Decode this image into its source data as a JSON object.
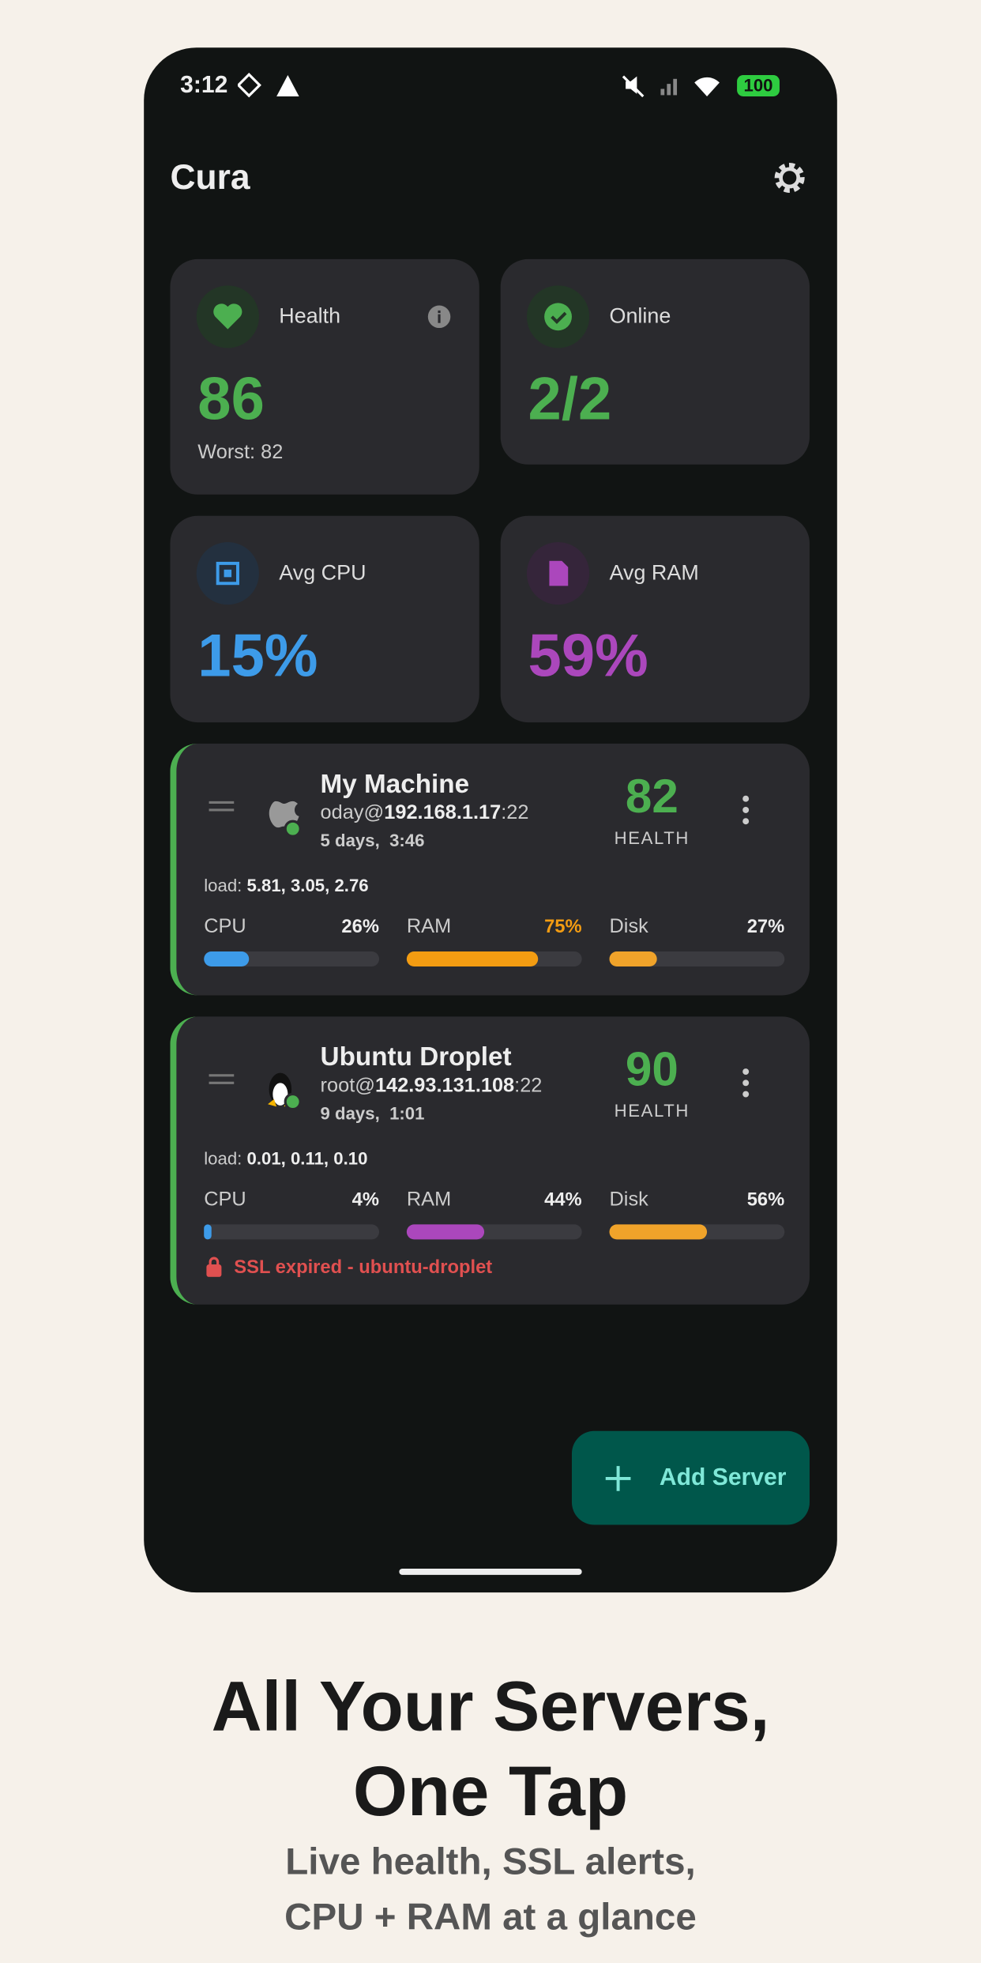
{
  "status": {
    "time": "3:12",
    "battery": "100"
  },
  "header": {
    "title": "Cura"
  },
  "summary": {
    "health": {
      "label": "Health",
      "value": "86",
      "note": "Worst: 82"
    },
    "online": {
      "label": "Online",
      "value": "2/2"
    },
    "cpu": {
      "label": "Avg CPU",
      "value": "15%"
    },
    "ram": {
      "label": "Avg RAM",
      "value": "59%"
    }
  },
  "servers": [
    {
      "name": "My Machine",
      "user": "oday@",
      "host": "192.168.1.17",
      "port": ":22",
      "uptime": "5 days,  3:46",
      "health": "82",
      "health_label": "HEALTH",
      "load_label": "load:",
      "load": "5.81, 3.05, 2.76",
      "metrics": [
        {
          "name": "CPU",
          "value": "26%",
          "color": "#3d9be9"
        },
        {
          "name": "RAM",
          "value": "75%",
          "color": "#f39c12"
        },
        {
          "name": "Disk",
          "value": "27%",
          "color": "#f0a32a"
        }
      ]
    },
    {
      "name": "Ubuntu Droplet",
      "user": "root@",
      "host": "142.93.131.108",
      "port": ":22",
      "uptime": "9 days,  1:01",
      "health": "90",
      "health_label": "HEALTH",
      "load_label": "load:",
      "load": "0.01, 0.11, 0.10",
      "metrics": [
        {
          "name": "CPU",
          "value": "4%",
          "color": "#3d9be9"
        },
        {
          "name": "RAM",
          "value": "44%",
          "color": "#ab47bc"
        },
        {
          "name": "Disk",
          "value": "56%",
          "color": "#f0a32a"
        }
      ],
      "alert": "SSL expired - ubuntu-droplet"
    }
  ],
  "fab": {
    "label": "Add Server"
  },
  "caption": {
    "headline": [
      "All Your Servers,",
      "One Tap"
    ],
    "subtitle": [
      "Live health, SSL alerts,",
      "CPU + RAM at a glance"
    ]
  }
}
